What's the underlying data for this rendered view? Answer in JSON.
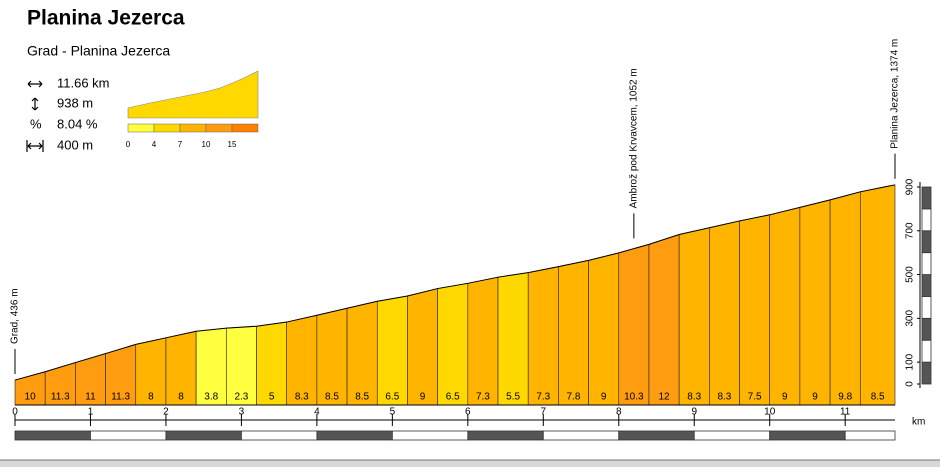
{
  "chart_data": {
    "type": "climb-profile",
    "title": "Planina Jezerca",
    "subtitle": "Grad - Planina Jezerca",
    "stats": {
      "distance": "11.66 km",
      "ascent": "938 m",
      "grade_symbol": "%",
      "average": "8.04 %",
      "segment": "400 m"
    },
    "legend_ticks": [
      0,
      4,
      7,
      10,
      15
    ],
    "legend_colors": [
      "#ffff40",
      "#ffd800",
      "#ffb400",
      "#ff9c10",
      "#ff8000"
    ],
    "x": [
      0,
      0.4,
      0.8,
      1.2,
      1.6,
      2,
      2.4,
      2.8,
      3.2,
      3.6,
      4,
      4.4,
      4.8,
      5.2,
      5.6,
      6,
      6.4,
      6.8,
      7.2,
      7.6,
      8,
      8.4,
      8.8,
      9.2,
      9.6,
      10,
      10.4,
      10.8,
      11.2,
      11.66
    ],
    "elevations": [
      18,
      56,
      98,
      139,
      181,
      211,
      241,
      255,
      264,
      283,
      314,
      346,
      378,
      402,
      436,
      460,
      488,
      509,
      536,
      565,
      599,
      638,
      683,
      714,
      745,
      773,
      807,
      841,
      878,
      910
    ],
    "gradients": [
      10,
      11.3,
      11,
      11.3,
      8,
      8,
      3.8,
      2.3,
      5,
      8.3,
      8.5,
      8.5,
      6.5,
      9,
      6.5,
      7.3,
      5.5,
      7.3,
      7.8,
      9,
      10.3,
      12,
      8.3,
      8.3,
      7.5,
      9,
      9,
      9.8,
      8.5
    ],
    "annotations": [
      {
        "text": "Grad, 436 m",
        "x": 0
      },
      {
        "text": "Ambrož pod Krvavcem, 1052 m",
        "x": 8.2
      },
      {
        "text": "Planina Jezerca, 1374 m",
        "x": 11.66
      }
    ],
    "xlim": [
      0,
      11.66
    ],
    "xticks": [
      0,
      1,
      2,
      3,
      4,
      5,
      6,
      7,
      8,
      9,
      10,
      11
    ],
    "xlabel": "km",
    "ylim": [
      0,
      900
    ],
    "yticks": [
      0,
      100,
      300,
      500,
      700,
      900
    ]
  }
}
